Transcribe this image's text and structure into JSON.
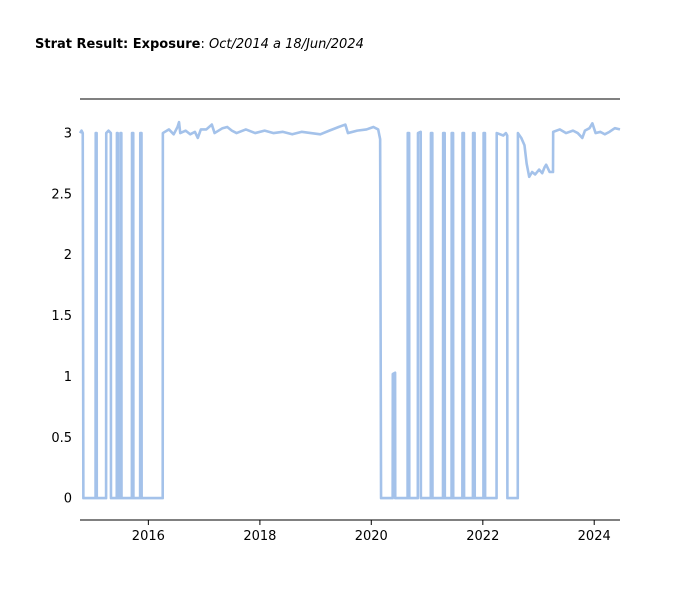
{
  "title": {
    "bold": "Strat Result: Exposure",
    "separator": ": ",
    "italic": "Oct/2014 a 18/Jun/2024"
  },
  "colors": {
    "line": "#a4c2ea",
    "axis": "#000000"
  },
  "chart_data": {
    "type": "line",
    "title": "Strat Result: Exposure: Oct/2014 a 18/Jun/2024",
    "xlabel": "",
    "ylabel": "",
    "xlim": [
      "2014-10-10",
      "2024-06-18"
    ],
    "ylim": [
      -0.18,
      3.28
    ],
    "x_ticks": [
      "2016",
      "2018",
      "2020",
      "2022",
      "2024"
    ],
    "y_ticks": [
      "0",
      "0.5",
      "1",
      "1.5",
      "2",
      "2.5",
      "3"
    ],
    "grid": false,
    "legend": "none",
    "series": [
      {
        "values": [
          [
            "2014-10-10",
            3.0
          ],
          [
            "2014-10-20",
            3.02
          ],
          [
            "2014-10-28",
            3.0
          ],
          [
            "2014-11-01",
            0
          ],
          [
            "2015-01-20",
            0
          ],
          [
            "2015-01-21",
            3.0
          ],
          [
            "2015-01-27",
            3.0
          ],
          [
            "2015-01-28",
            0
          ],
          [
            "2015-03-30",
            0
          ],
          [
            "2015-03-31",
            3.0
          ],
          [
            "2015-04-15",
            3.02
          ],
          [
            "2015-04-30",
            3.0
          ],
          [
            "2015-05-01",
            0
          ],
          [
            "2015-06-08",
            0
          ],
          [
            "2015-06-09",
            3.0
          ],
          [
            "2015-06-14",
            3.0
          ],
          [
            "2015-06-15",
            0
          ],
          [
            "2015-07-01",
            0
          ],
          [
            "2015-07-02",
            3.0
          ],
          [
            "2015-07-08",
            3.0
          ],
          [
            "2015-07-09",
            0
          ],
          [
            "2015-09-15",
            0
          ],
          [
            "2015-09-16",
            3.0
          ],
          [
            "2015-09-24",
            3.0
          ],
          [
            "2015-09-25",
            0
          ],
          [
            "2015-11-08",
            0
          ],
          [
            "2015-11-09",
            3.0
          ],
          [
            "2015-11-17",
            3.0
          ],
          [
            "2015-11-18",
            0
          ],
          [
            "2016-04-04",
            0
          ],
          [
            "2016-04-05",
            3.0
          ],
          [
            "2016-05-15",
            3.03
          ],
          [
            "2016-06-15",
            2.99
          ],
          [
            "2016-07-10",
            3.05
          ],
          [
            "2016-07-20",
            3.09
          ],
          [
            "2016-07-28",
            3.0
          ],
          [
            "2016-09-01",
            3.02
          ],
          [
            "2016-10-01",
            2.99
          ],
          [
            "2016-11-01",
            3.01
          ],
          [
            "2016-11-20",
            2.96
          ],
          [
            "2016-12-10",
            3.03
          ],
          [
            "2017-01-15",
            3.03
          ],
          [
            "2017-02-20",
            3.07
          ],
          [
            "2017-03-10",
            3.0
          ],
          [
            "2017-05-01",
            3.04
          ],
          [
            "2017-06-01",
            3.05
          ],
          [
            "2017-07-01",
            3.02
          ],
          [
            "2017-08-01",
            3.0
          ],
          [
            "2017-10-01",
            3.03
          ],
          [
            "2017-12-01",
            3.0
          ],
          [
            "2018-02-01",
            3.02
          ],
          [
            "2018-04-01",
            3.0
          ],
          [
            "2018-06-01",
            3.01
          ],
          [
            "2018-08-01",
            2.99
          ],
          [
            "2018-10-01",
            3.01
          ],
          [
            "2018-12-01",
            3.0
          ],
          [
            "2019-02-01",
            2.99
          ],
          [
            "2019-04-01",
            3.02
          ],
          [
            "2019-06-01",
            3.05
          ],
          [
            "2019-07-15",
            3.07
          ],
          [
            "2019-08-01",
            3.0
          ],
          [
            "2019-10-01",
            3.02
          ],
          [
            "2019-12-01",
            3.03
          ],
          [
            "2020-01-15",
            3.05
          ],
          [
            "2020-02-15",
            3.03
          ],
          [
            "2020-02-28",
            2.95
          ],
          [
            "2020-03-05",
            0
          ],
          [
            "2020-05-20",
            0
          ],
          [
            "2020-05-21",
            1.02
          ],
          [
            "2020-06-05",
            1.03
          ],
          [
            "2020-06-06",
            0
          ],
          [
            "2020-08-26",
            0
          ],
          [
            "2020-08-27",
            3.0
          ],
          [
            "2020-09-05",
            3.0
          ],
          [
            "2020-09-06",
            0
          ],
          [
            "2020-11-01",
            0
          ],
          [
            "2020-11-02",
            3.0
          ],
          [
            "2020-11-20",
            3.01
          ],
          [
            "2020-11-21",
            0
          ],
          [
            "2021-01-25",
            0
          ],
          [
            "2021-01-26",
            3.0
          ],
          [
            "2021-02-04",
            3.0
          ],
          [
            "2021-02-05",
            0
          ],
          [
            "2021-04-15",
            0
          ],
          [
            "2021-04-16",
            3.0
          ],
          [
            "2021-04-26",
            3.0
          ],
          [
            "2021-04-27",
            0
          ],
          [
            "2021-06-10",
            0
          ],
          [
            "2021-06-11",
            3.0
          ],
          [
            "2021-06-20",
            3.0
          ],
          [
            "2021-06-21",
            0
          ],
          [
            "2021-08-20",
            0
          ],
          [
            "2021-08-21",
            3.0
          ],
          [
            "2021-08-30",
            3.0
          ],
          [
            "2021-08-31",
            0
          ],
          [
            "2021-10-28",
            0
          ],
          [
            "2021-10-29",
            3.0
          ],
          [
            "2021-11-08",
            3.0
          ],
          [
            "2021-11-09",
            0
          ],
          [
            "2022-01-05",
            0
          ],
          [
            "2022-01-06",
            3.0
          ],
          [
            "2022-01-15",
            3.0
          ],
          [
            "2022-01-16",
            0
          ],
          [
            "2022-04-01",
            0
          ],
          [
            "2022-04-02",
            3.0
          ],
          [
            "2022-05-15",
            2.98
          ],
          [
            "2022-06-01",
            3.0
          ],
          [
            "2022-06-10",
            2.98
          ],
          [
            "2022-06-11",
            0
          ],
          [
            "2022-08-18",
            0
          ],
          [
            "2022-08-19",
            3.0
          ],
          [
            "2022-09-10",
            2.96
          ],
          [
            "2022-10-01",
            2.9
          ],
          [
            "2022-10-15",
            2.75
          ],
          [
            "2022-11-01",
            2.64
          ],
          [
            "2022-11-20",
            2.68
          ],
          [
            "2022-12-10",
            2.66
          ],
          [
            "2023-01-05",
            2.7
          ],
          [
            "2023-01-25",
            2.67
          ],
          [
            "2023-02-10",
            2.72
          ],
          [
            "2023-02-20",
            2.74
          ],
          [
            "2023-03-15",
            2.68
          ],
          [
            "2023-04-06",
            2.68
          ],
          [
            "2023-04-07",
            3.01
          ],
          [
            "2023-05-20",
            3.03
          ],
          [
            "2023-07-01",
            3.0
          ],
          [
            "2023-08-15",
            3.02
          ],
          [
            "2023-09-15",
            3.0
          ],
          [
            "2023-10-15",
            2.96
          ],
          [
            "2023-11-01",
            3.02
          ],
          [
            "2023-12-01",
            3.04
          ],
          [
            "2023-12-20",
            3.08
          ],
          [
            "2024-01-10",
            3.0
          ],
          [
            "2024-02-10",
            3.01
          ],
          [
            "2024-03-10",
            2.99
          ],
          [
            "2024-04-10",
            3.01
          ],
          [
            "2024-05-15",
            3.04
          ],
          [
            "2024-06-18",
            3.03
          ]
        ]
      }
    ]
  }
}
